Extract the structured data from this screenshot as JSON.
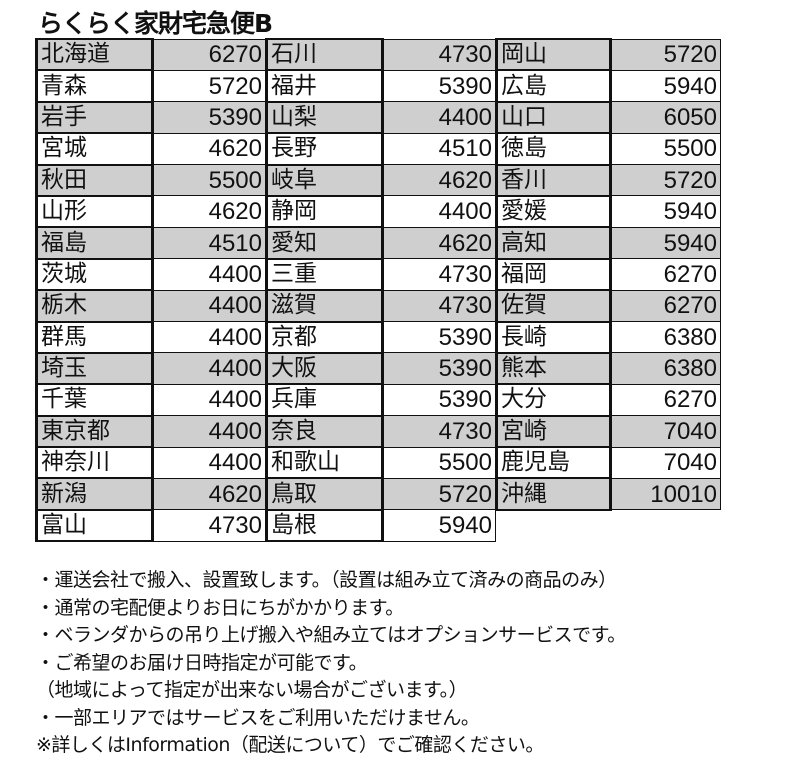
{
  "title": "らくらく家財宅急便B",
  "colors": {
    "shaded_row": "#cfcfcf",
    "border": "#111111"
  },
  "groups": [
    [
      [
        "北海道",
        "6270"
      ],
      [
        "青森",
        "5720"
      ],
      [
        "岩手",
        "5390"
      ],
      [
        "宮城",
        "4620"
      ],
      [
        "秋田",
        "5500"
      ],
      [
        "山形",
        "4620"
      ],
      [
        "福島",
        "4510"
      ],
      [
        "茨城",
        "4400"
      ],
      [
        "栃木",
        "4400"
      ],
      [
        "群馬",
        "4400"
      ],
      [
        "埼玉",
        "4400"
      ],
      [
        "千葉",
        "4400"
      ],
      [
        "東京都",
        "4400"
      ],
      [
        "神奈川",
        "4400"
      ],
      [
        "新潟",
        "4620"
      ],
      [
        "富山",
        "4730"
      ]
    ],
    [
      [
        "石川",
        "4730"
      ],
      [
        "福井",
        "5390"
      ],
      [
        "山梨",
        "4400"
      ],
      [
        "長野",
        "4510"
      ],
      [
        "岐阜",
        "4620"
      ],
      [
        "静岡",
        "4400"
      ],
      [
        "愛知",
        "4620"
      ],
      [
        "三重",
        "4730"
      ],
      [
        "滋賀",
        "4730"
      ],
      [
        "京都",
        "5390"
      ],
      [
        "大阪",
        "5390"
      ],
      [
        "兵庫",
        "5390"
      ],
      [
        "奈良",
        "4730"
      ],
      [
        "和歌山",
        "5500"
      ],
      [
        "鳥取",
        "5720"
      ],
      [
        "島根",
        "5940"
      ]
    ],
    [
      [
        "岡山",
        "5720"
      ],
      [
        "広島",
        "5940"
      ],
      [
        "山口",
        "6050"
      ],
      [
        "徳島",
        "5500"
      ],
      [
        "香川",
        "5720"
      ],
      [
        "愛媛",
        "5940"
      ],
      [
        "高知",
        "5940"
      ],
      [
        "福岡",
        "6270"
      ],
      [
        "佐賀",
        "6270"
      ],
      [
        "長崎",
        "6380"
      ],
      [
        "熊本",
        "6380"
      ],
      [
        "大分",
        "6270"
      ],
      [
        "宮崎",
        "7040"
      ],
      [
        "鹿児島",
        "7040"
      ],
      [
        "沖縄",
        "10010"
      ]
    ]
  ],
  "notes": [
    "・運送会社で搬入、設置致します。（設置は組み立て済みの商品のみ）",
    "・通常の宅配便よりお日にちがかかります。",
    "・ベランダからの吊り上げ搬入や組み立てはオプションサービスです。",
    "・ご希望のお届け日時指定が可能です。",
    "（地域によって指定が出来ない場合がございます。）",
    "・一部エリアではサービスをご利用いただけません。",
    "※詳しくはInformation（配送について）でご確認ください。"
  ]
}
